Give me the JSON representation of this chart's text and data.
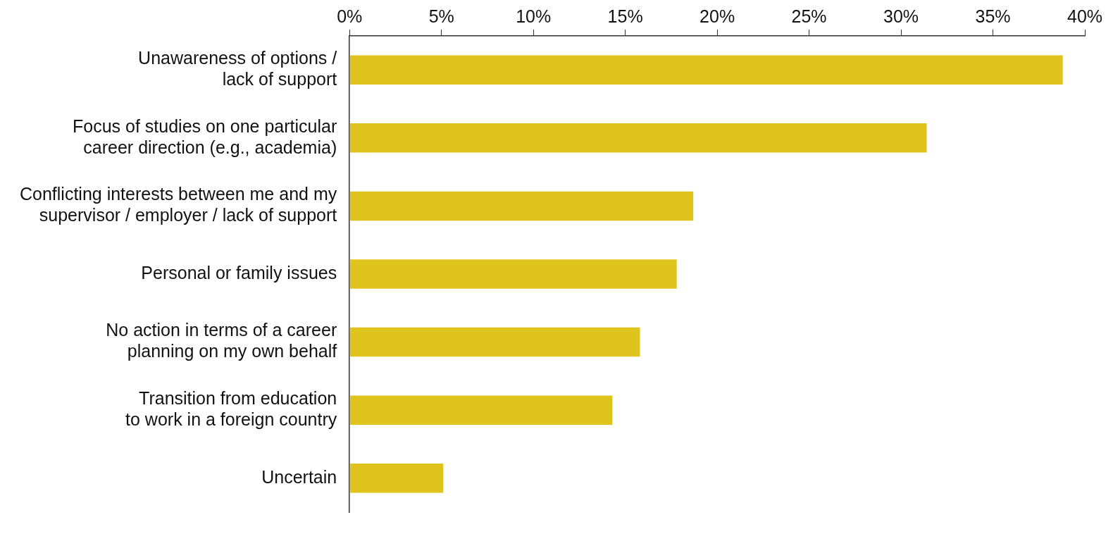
{
  "chart_data": {
    "type": "bar",
    "orientation": "horizontal",
    "categories": [
      "Unawareness of options /\nlack of support",
      "Focus of studies on one particular\ncareer direction (e.g., academia)",
      "Conflicting interests between me and my\nsupervisor / employer / lack of support",
      "Personal or family issues",
      "No action in terms of a career\nplanning on my own behalf",
      "Transition from education\nto work in a foreign country",
      "Uncertain"
    ],
    "values": [
      38.8,
      31.4,
      18.7,
      17.8,
      15.8,
      14.3,
      5.1
    ],
    "color": "#e0c41e",
    "xlim": [
      0,
      40
    ],
    "xticks": [
      {
        "value": 0,
        "label": "0%"
      },
      {
        "value": 5,
        "label": "5%"
      },
      {
        "value": 10,
        "label": "10%"
      },
      {
        "value": 15,
        "label": "15%"
      },
      {
        "value": 20,
        "label": "20%"
      },
      {
        "value": 25,
        "label": "25%"
      },
      {
        "value": 30,
        "label": "30%"
      },
      {
        "value": 35,
        "label": "35%"
      },
      {
        "value": 40,
        "label": "40%"
      }
    ],
    "grid": false,
    "legend": false
  }
}
